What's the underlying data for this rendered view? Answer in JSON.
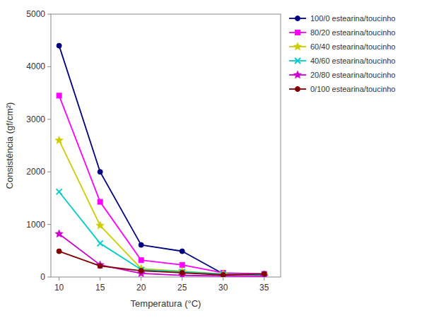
{
  "chart_data": {
    "type": "line",
    "xlabel": "Temperatura (°C)",
    "ylabel": "Consistência (gf/cm²)",
    "x": [
      10,
      15,
      20,
      25,
      30,
      35
    ],
    "series": [
      {
        "name": "100/0 estearina/toucinho",
        "color": "#000080",
        "marker": "circle",
        "values": [
          4400,
          2000,
          610,
          490,
          60,
          60
        ]
      },
      {
        "name": "80/20 estearina/toucinho",
        "color": "#FF00FF",
        "marker": "square",
        "values": [
          3450,
          1430,
          320,
          230,
          80,
          60
        ]
      },
      {
        "name": "60/40 estearina/toucinho",
        "color": "#CCCC00",
        "marker": "star",
        "values": [
          2600,
          980,
          160,
          110,
          60,
          40
        ]
      },
      {
        "name": "40/60 estearina/toucinho",
        "color": "#00CCCC",
        "marker": "x",
        "values": [
          1620,
          640,
          140,
          100,
          55,
          35
        ]
      },
      {
        "name": "20/80 estearina/toucinho",
        "color": "#CC00CC",
        "marker": "star",
        "values": [
          820,
          230,
          70,
          30,
          20,
          15
        ]
      },
      {
        "name": "0/100 estearina/toucinho",
        "color": "#800000",
        "marker": "circle",
        "values": [
          490,
          210,
          120,
          80,
          40,
          60
        ]
      }
    ],
    "xlim": [
      9,
      37
    ],
    "ylim": [
      0,
      5000
    ],
    "xticks": [
      10,
      15,
      20,
      25,
      30,
      35
    ],
    "yticks": [
      0,
      1000,
      2000,
      3000,
      4000,
      5000
    ],
    "grid": false,
    "legend": "right"
  }
}
